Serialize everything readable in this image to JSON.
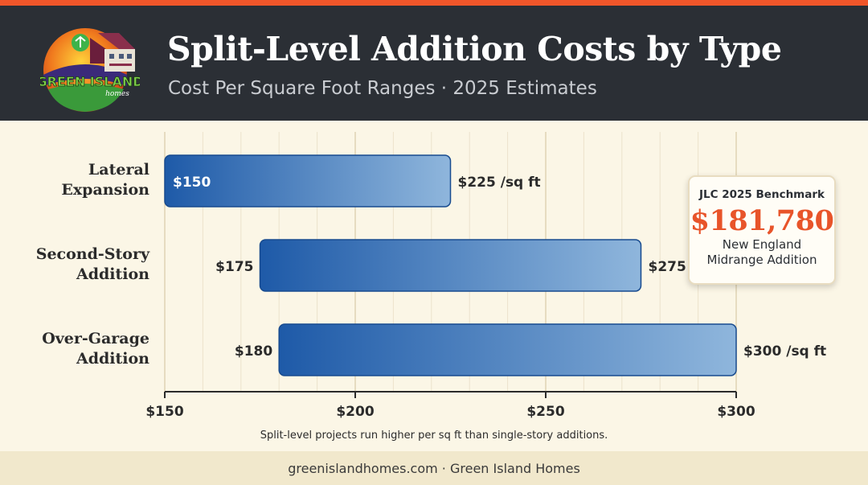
{
  "header": {
    "title": "Split-Level Addition Costs by Type",
    "subtitle": "Cost Per Square Foot Ranges · 2025 Estimates",
    "logo_text": "GREEN ISLAND",
    "logo_subtext": "homes"
  },
  "chart_data": {
    "type": "bar",
    "orientation": "horizontal-range",
    "categories": [
      "Lateral Expansion",
      "Second-Story Addition",
      "Over-Garage Addition"
    ],
    "category_lines": [
      [
        "Lateral",
        "Expansion"
      ],
      [
        "Second-Story",
        "Addition"
      ],
      [
        "Over-Garage",
        "Addition"
      ]
    ],
    "series": [
      {
        "low": [
          150,
          175,
          180
        ],
        "high": [
          225,
          275,
          300
        ]
      }
    ],
    "low_labels": [
      "$150",
      "$175",
      "$180"
    ],
    "high_labels": [
      "$225 /sq ft",
      "$275",
      "$300 /sq ft"
    ],
    "x_ticks": [
      150,
      200,
      250,
      300
    ],
    "x_tick_labels": [
      "$150",
      "$200",
      "$250",
      "$300"
    ],
    "xlim": [
      150,
      300
    ],
    "grid": true,
    "colors": {
      "bar_start": "#1e5aa8",
      "bar_end": "#8fb6dc",
      "bar_border": "#184b8f"
    }
  },
  "callout": {
    "title": "JLC 2025 Benchmark",
    "value": "$181,780",
    "line1": "New England",
    "line2": "Midrange Addition"
  },
  "footnote": "Split-level projects run higher per sq ft than single-story additions.",
  "footer": "greenislandhomes.com · Green Island Homes",
  "colors": {
    "accent": "#f0562a",
    "header_bg": "#2b2f35",
    "page_bg": "#fbf6e6",
    "callout_value": "#e8542a"
  }
}
